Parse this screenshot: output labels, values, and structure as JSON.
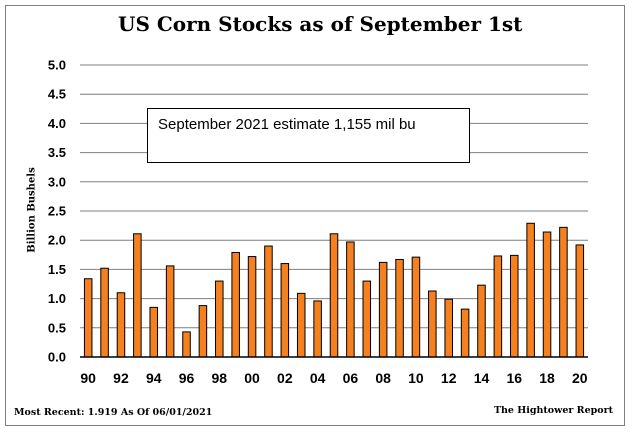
{
  "chart_data": {
    "type": "bar",
    "title": "US Corn Stocks as of September 1st",
    "ylabel": "Billion Bushels",
    "xlabel": "",
    "ylim": [
      0,
      5.0
    ],
    "yticks": [
      "0.0",
      "0.5",
      "1.0",
      "1.5",
      "2.0",
      "2.5",
      "3.0",
      "3.5",
      "4.0",
      "4.5",
      "5.0"
    ],
    "grid": true,
    "bar_color": "#f4801f",
    "bar_edge_color": "#000000",
    "categories": [
      "90",
      "91",
      "92",
      "93",
      "94",
      "95",
      "96",
      "97",
      "98",
      "99",
      "00",
      "01",
      "02",
      "03",
      "04",
      "05",
      "06",
      "07",
      "08",
      "09",
      "10",
      "11",
      "12",
      "13",
      "14",
      "15",
      "16",
      "17",
      "18",
      "19",
      "20"
    ],
    "xtick_labels": [
      "90",
      "92",
      "94",
      "96",
      "98",
      "00",
      "02",
      "04",
      "06",
      "08",
      "10",
      "12",
      "14",
      "16",
      "18",
      "20"
    ],
    "values": [
      1.34,
      1.52,
      1.1,
      2.11,
      0.85,
      1.56,
      0.43,
      0.88,
      1.3,
      1.79,
      1.72,
      1.9,
      1.6,
      1.09,
      0.96,
      2.11,
      1.97,
      1.3,
      1.62,
      1.67,
      1.71,
      1.13,
      0.99,
      0.82,
      1.23,
      1.73,
      1.74,
      2.29,
      2.14,
      2.22,
      1.919
    ],
    "annotation": "September 2021 estimate 1,155 mil bu"
  },
  "footer": {
    "most_recent": "Most Recent: 1.919 As Of 06/01/2021",
    "source": "The Hightower Report"
  }
}
